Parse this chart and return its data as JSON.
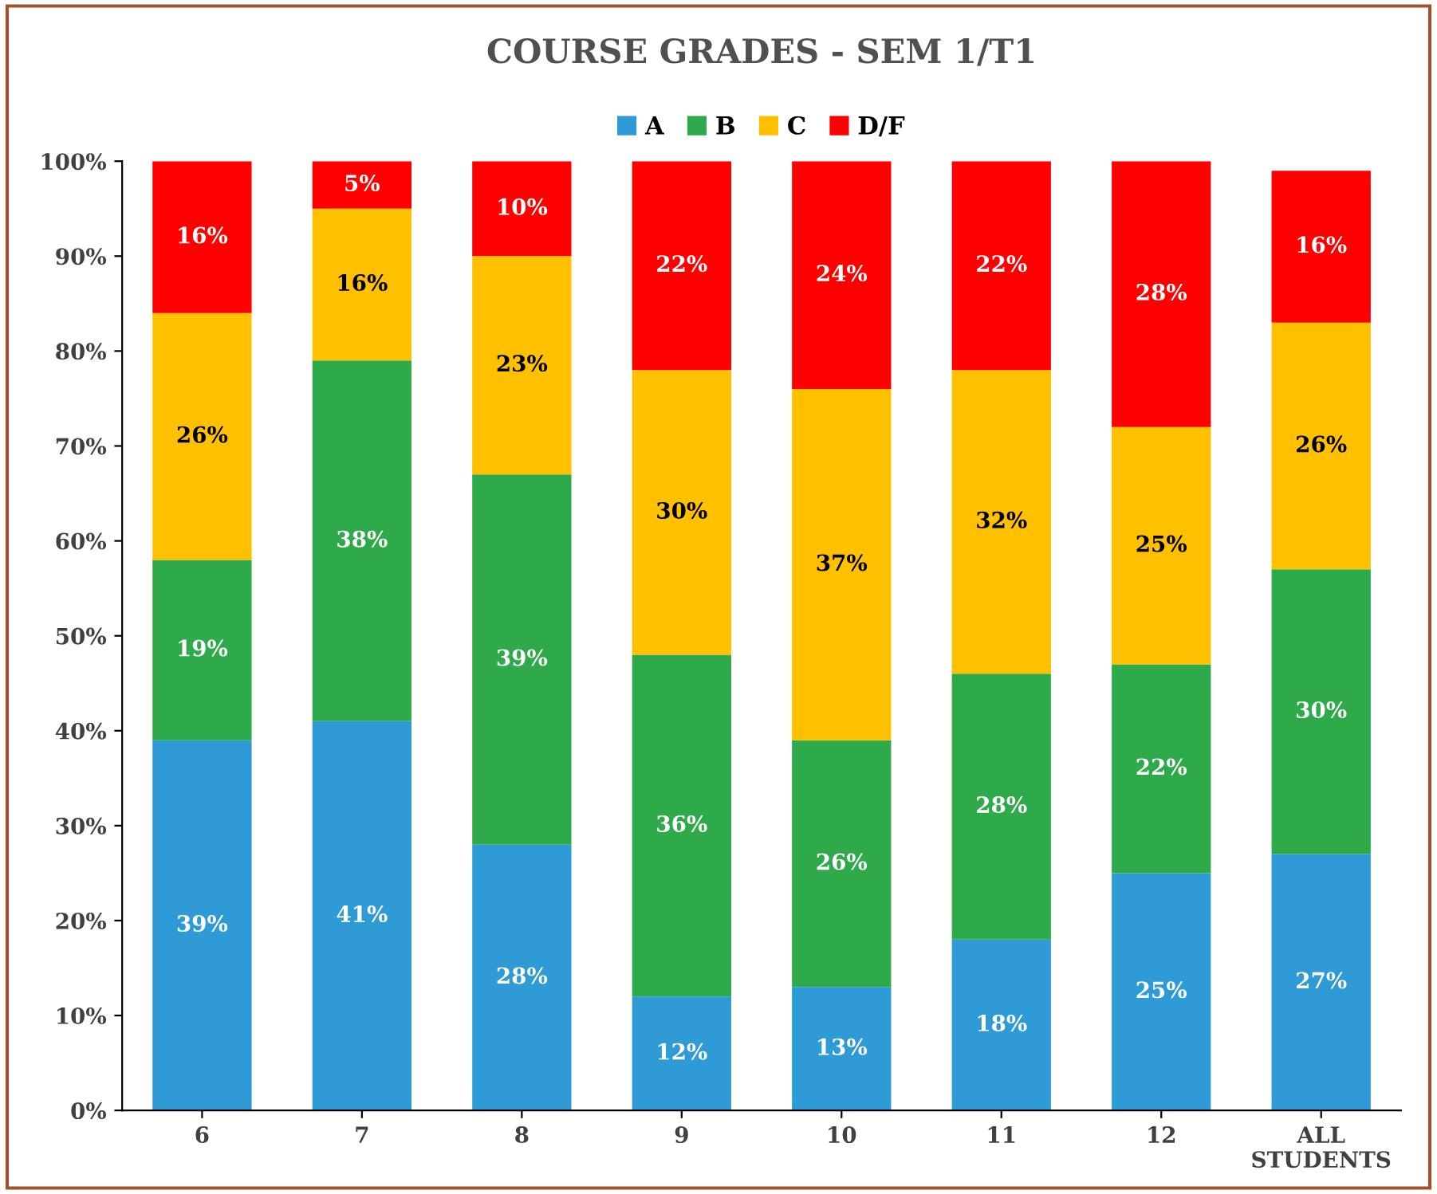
{
  "chart_data": {
    "type": "bar",
    "stacked": true,
    "title": "COURSE GRADES - SEM 1/T1",
    "categories": [
      "6",
      "7",
      "8",
      "9",
      "10",
      "11",
      "12",
      "ALL\nSTUDENTS"
    ],
    "series": [
      {
        "name": "A",
        "color": "#2e9bd6",
        "values": [
          39,
          41,
          28,
          12,
          13,
          18,
          25,
          27
        ],
        "value_labels": [
          "39%",
          "41%",
          "28%",
          "12%",
          "13%",
          "18%",
          "25%",
          "27%"
        ]
      },
      {
        "name": "B",
        "color": "#2eaa4a",
        "values": [
          19,
          38,
          39,
          36,
          26,
          28,
          22,
          30
        ],
        "value_labels": [
          "19%",
          "38%",
          "39%",
          "36%",
          "26%",
          "28%",
          "22%",
          "30%"
        ]
      },
      {
        "name": "C",
        "color": "#ffc000",
        "values": [
          26,
          16,
          23,
          30,
          37,
          32,
          25,
          26
        ],
        "value_labels": [
          "26%",
          "16%",
          "23%",
          "30%",
          "37%",
          "32%",
          "25%",
          "26%"
        ]
      },
      {
        "name": "D/F",
        "color": "#ff0000",
        "values": [
          16,
          5,
          10,
          22,
          24,
          22,
          28,
          16
        ],
        "value_labels": [
          "16%",
          "5%",
          "10%",
          "22%",
          "24%",
          "22%",
          "28%",
          "16%"
        ]
      }
    ],
    "ylim": [
      0,
      100
    ],
    "yticks": [
      {
        "value": 0,
        "label": "0%"
      },
      {
        "value": 10,
        "label": "10%"
      },
      {
        "value": 20,
        "label": "20%"
      },
      {
        "value": 30,
        "label": "30%"
      },
      {
        "value": 40,
        "label": "40%"
      },
      {
        "value": 50,
        "label": "50%"
      },
      {
        "value": 60,
        "label": "60%"
      },
      {
        "value": 70,
        "label": "70%"
      },
      {
        "value": 80,
        "label": "80%"
      },
      {
        "value": 90,
        "label": "90%"
      },
      {
        "value": 100,
        "label": "100%"
      }
    ],
    "grid": false,
    "legend": "top"
  }
}
